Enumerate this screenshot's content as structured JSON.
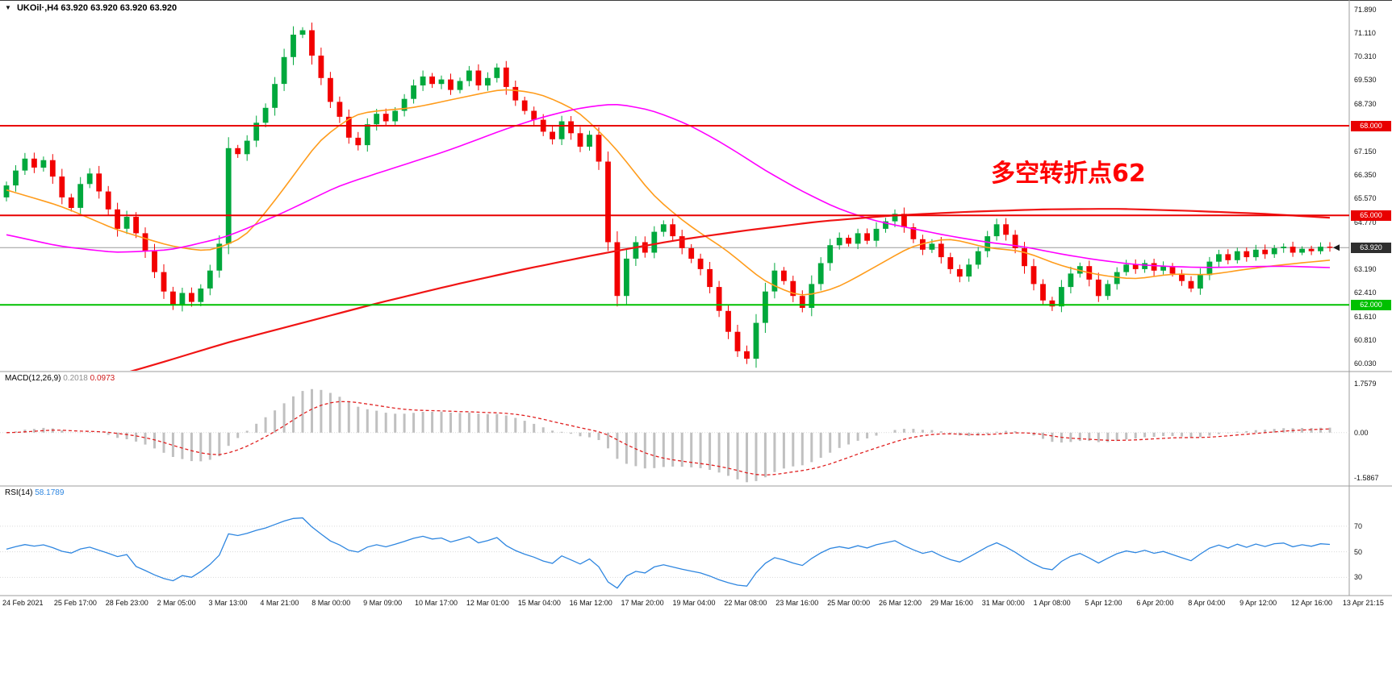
{
  "header": {
    "collapse_icon": "▼",
    "symbol_period": "UKOil·,H4",
    "ohlc": "63.920 63.920 63.920 63.920"
  },
  "annotation": {
    "text": "多空转折点62",
    "color": "#ff0000"
  },
  "colors": {
    "background": "#ffffff",
    "up_candle": "#00a83c",
    "down_candle": "#f20000",
    "last_price_line": "#9a9a9a",
    "badge_dark": "#2f2f2f",
    "separator": "#9c9c9c"
  },
  "time_axis": {
    "labels": [
      "24 Feb 2021",
      "25 Feb 17:00",
      "28 Feb 23:00",
      "2 Mar 05:00",
      "3 Mar 13:00",
      "4 Mar 21:00",
      "8 Mar 00:00",
      "9 Mar 09:00",
      "10 Mar 17:00",
      "12 Mar 01:00",
      "15 Mar 04:00",
      "16 Mar 12:00",
      "17 Mar 20:00",
      "19 Mar 04:00",
      "22 Mar 08:00",
      "23 Mar 16:00",
      "25 Mar 00:00",
      "26 Mar 12:00",
      "29 Mar 16:00",
      "31 Mar 00:00",
      "1 Apr 08:00",
      "5 Apr 12:00",
      "6 Apr 20:00",
      "8 Apr 04:00",
      "9 Apr 12:00",
      "12 Apr 16:00",
      "13 Apr 21:15"
    ]
  },
  "chart_data": [
    {
      "type": "candlestick",
      "symbol": "UKOil",
      "timeframe": "H4",
      "ylim": [
        59.85,
        72.05
      ],
      "yticks": [
        "71.890",
        "71.110",
        "70.310",
        "69.530",
        "68.730",
        "67.150",
        "66.350",
        "65.570",
        "64.770",
        "63.190",
        "62.410",
        "61.610",
        "60.810",
        "60.030"
      ],
      "first_open": 65.6,
      "closes": [
        66.0,
        66.5,
        66.9,
        66.6,
        66.85,
        66.3,
        65.6,
        65.25,
        66.05,
        66.4,
        65.8,
        65.2,
        64.55,
        64.95,
        64.4,
        63.8,
        63.1,
        62.45,
        62.0,
        62.4,
        62.1,
        62.55,
        63.15,
        64.05,
        67.25,
        67.05,
        67.5,
        68.1,
        68.6,
        69.4,
        70.3,
        71.05,
        71.2,
        70.35,
        69.6,
        68.8,
        68.3,
        67.6,
        67.35,
        68.05,
        68.4,
        68.15,
        68.5,
        68.9,
        69.35,
        69.65,
        69.4,
        69.55,
        69.2,
        69.5,
        69.85,
        69.35,
        69.6,
        69.95,
        69.3,
        68.85,
        68.5,
        68.2,
        67.8,
        67.55,
        68.15,
        67.75,
        67.3,
        67.7,
        66.8,
        64.1,
        62.3,
        63.55,
        64.1,
        63.75,
        64.45,
        64.7,
        64.3,
        63.9,
        63.55,
        63.2,
        62.6,
        61.8,
        61.1,
        60.45,
        60.2,
        61.4,
        62.45,
        63.15,
        62.8,
        62.3,
        61.9,
        62.7,
        63.4,
        64.0,
        64.25,
        64.05,
        64.4,
        64.15,
        64.55,
        64.8,
        65.05,
        64.6,
        64.2,
        63.85,
        64.05,
        63.6,
        63.2,
        62.95,
        63.35,
        63.8,
        64.3,
        64.7,
        64.35,
        63.9,
        63.3,
        62.7,
        62.15,
        61.95,
        62.6,
        63.05,
        63.3,
        62.85,
        62.3,
        62.7,
        63.1,
        63.35,
        63.2,
        63.4,
        63.15,
        63.3,
        63.05,
        62.8,
        62.55,
        63.0,
        63.45,
        63.7,
        63.5,
        63.8,
        63.6,
        63.85,
        63.7,
        63.9,
        63.95,
        63.75,
        63.88,
        63.8,
        63.95,
        63.92
      ],
      "hlines": [
        {
          "price": 68.0,
          "label": "68.000",
          "color": "#e80000"
        },
        {
          "price": 65.0,
          "label": "65.000",
          "color": "#e80000"
        },
        {
          "price": 62.0,
          "label": "62.000",
          "color": "#00c000"
        }
      ],
      "last_price": {
        "value": 63.92,
        "label": "63.920"
      },
      "overlays": [
        {
          "name": "ma-fast-orange",
          "color": "#ff9c1c",
          "width": 1.6,
          "points": [
            [
              0,
              65.85
            ],
            [
              6,
              65.3
            ],
            [
              12,
              64.5
            ],
            [
              18,
              63.95
            ],
            [
              22,
              63.78
            ],
            [
              26,
              64.3
            ],
            [
              30,
              65.9
            ],
            [
              34,
              67.6
            ],
            [
              38,
              68.45
            ],
            [
              44,
              68.6
            ],
            [
              50,
              69.0
            ],
            [
              54,
              69.25
            ],
            [
              58,
              69.05
            ],
            [
              62,
              68.45
            ],
            [
              66,
              67.2
            ],
            [
              70,
              65.6
            ],
            [
              74,
              64.6
            ],
            [
              78,
              63.8
            ],
            [
              82,
              62.75
            ],
            [
              86,
              62.25
            ],
            [
              90,
              62.6
            ],
            [
              94,
              63.3
            ],
            [
              98,
              64.0
            ],
            [
              102,
              64.25
            ],
            [
              106,
              63.9
            ],
            [
              110,
              63.8
            ],
            [
              114,
              63.3
            ],
            [
              118,
              63.0
            ],
            [
              122,
              62.85
            ],
            [
              126,
              63.05
            ],
            [
              130,
              63.0
            ],
            [
              134,
              63.2
            ],
            [
              138,
              63.35
            ],
            [
              143,
              63.5
            ]
          ]
        },
        {
          "name": "ma-mid-magenta",
          "color": "#ff00ff",
          "width": 1.6,
          "points": [
            [
              0,
              64.35
            ],
            [
              6,
              63.95
            ],
            [
              12,
              63.75
            ],
            [
              18,
              63.85
            ],
            [
              24,
              64.3
            ],
            [
              30,
              65.1
            ],
            [
              36,
              66.0
            ],
            [
              42,
              66.6
            ],
            [
              48,
              67.2
            ],
            [
              54,
              67.9
            ],
            [
              58,
              68.3
            ],
            [
              62,
              68.6
            ],
            [
              66,
              68.75
            ],
            [
              70,
              68.5
            ],
            [
              74,
              68.0
            ],
            [
              78,
              67.3
            ],
            [
              82,
              66.5
            ],
            [
              86,
              65.8
            ],
            [
              90,
              65.2
            ],
            [
              94,
              64.8
            ],
            [
              98,
              64.55
            ],
            [
              102,
              64.3
            ],
            [
              106,
              64.1
            ],
            [
              110,
              63.95
            ],
            [
              114,
              63.7
            ],
            [
              118,
              63.5
            ],
            [
              122,
              63.35
            ],
            [
              126,
              63.28
            ],
            [
              130,
              63.25
            ],
            [
              134,
              63.28
            ],
            [
              138,
              63.3
            ],
            [
              143,
              63.25
            ]
          ]
        },
        {
          "name": "ma-slow-red",
          "color": "#f01414",
          "width": 2.2,
          "points": [
            [
              0,
              58.6
            ],
            [
              8,
              59.3
            ],
            [
              16,
              60.0
            ],
            [
              24,
              60.75
            ],
            [
              32,
              61.4
            ],
            [
              40,
              62.05
            ],
            [
              48,
              62.65
            ],
            [
              56,
              63.2
            ],
            [
              64,
              63.7
            ],
            [
              72,
              64.15
            ],
            [
              80,
              64.5
            ],
            [
              88,
              64.8
            ],
            [
              96,
              65.0
            ],
            [
              104,
              65.12
            ],
            [
              112,
              65.2
            ],
            [
              120,
              65.22
            ],
            [
              128,
              65.15
            ],
            [
              136,
              65.05
            ],
            [
              143,
              64.92
            ]
          ]
        }
      ]
    },
    {
      "type": "macd",
      "label": "MACD(12,26,9)",
      "value_main": "0.2018",
      "value_signal": "0.0973",
      "params": [
        12,
        26,
        9
      ],
      "yticks": [
        "1.7579",
        "0.00",
        "-1.5867"
      ],
      "histogram_color": "#c0c0c0",
      "signal_color": "#e02020"
    },
    {
      "type": "rsi",
      "label": "RSI(14)",
      "value": "58.1789",
      "period": 14,
      "levels": [
        70,
        50,
        30
      ],
      "yticks": [
        "70",
        "50",
        "30"
      ],
      "line_color": "#2e86e0"
    }
  ]
}
